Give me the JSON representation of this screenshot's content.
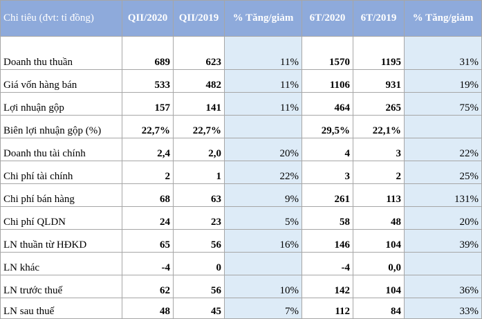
{
  "headers": [
    "Chỉ tiêu (đvt: tỉ đồng)",
    "QII/2020",
    "QII/2019",
    "% Tăng/giảm",
    "6T/2020",
    "6T/2019",
    "% Tăng/giảm"
  ],
  "rows": [
    [
      "Doanh thu thuần",
      "689",
      "623",
      "11%",
      "1570",
      "1195",
      "31%"
    ],
    [
      "Giá vốn hàng bán",
      "533",
      "482",
      "11%",
      "1106",
      "931",
      "19%"
    ],
    [
      "Lợi nhuận gộp",
      "157",
      "141",
      "11%",
      "464",
      "265",
      "75%"
    ],
    [
      "Biên lợi nhuận gộp (%)",
      "22,7%",
      "22,7%",
      "",
      "29,5%",
      "22,1%",
      ""
    ],
    [
      "Doanh thu tài chính",
      "2,4",
      "2,0",
      "20%",
      "4",
      "3",
      "22%"
    ],
    [
      "Chi phí tài chính",
      "2",
      "1",
      "22%",
      "3",
      "2",
      "25%"
    ],
    [
      "Chi phí bán hàng",
      "68",
      "63",
      "9%",
      "261",
      "113",
      "131%"
    ],
    [
      "Chi phí QLDN",
      "24",
      "23",
      "5%",
      "58",
      "48",
      "20%"
    ],
    [
      "LN thuần từ HĐKD",
      "65",
      "56",
      "16%",
      "146",
      "104",
      "39%"
    ],
    [
      "LN khác",
      "-4",
      "0",
      "",
      "-4",
      "0,0",
      ""
    ],
    [
      "LN trước thuế",
      "62",
      "56",
      "10%",
      "142",
      "104",
      "36%"
    ],
    [
      "LN sau thuế",
      "48",
      "45",
      "7%",
      "112",
      "84",
      "33%"
    ]
  ],
  "colors": {
    "header_bg": "#8eaadb",
    "header_text": "#ffffff",
    "pct_bg": "#ddebf7",
    "border": "#a6a6a6"
  }
}
